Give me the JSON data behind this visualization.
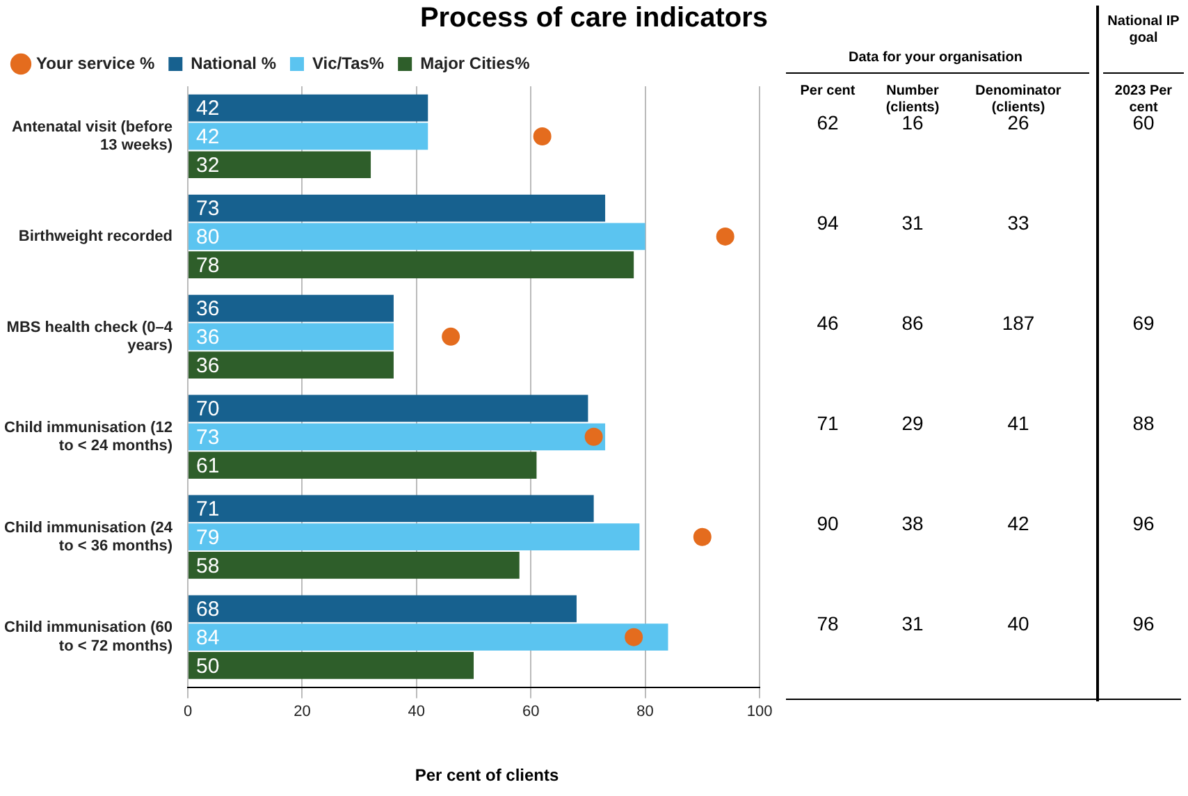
{
  "chart_data": {
    "type": "bar",
    "orientation": "horizontal",
    "title": "Process of care indicators",
    "xlabel": "Per cent of clients",
    "categories": [
      "Antenatal visit (before 13 weeks)",
      "Birthweight recorded",
      "MBS health check (0–4 years)",
      "Child immunisation (12 to < 24 months)",
      "Child immunisation (24 to < 36 months)",
      "Child immunisation (60 to < 72 months)"
    ],
    "series": [
      {
        "name": "National %",
        "color": "#17618f",
        "values": [
          42,
          73,
          36,
          70,
          71,
          68
        ]
      },
      {
        "name": "Vic/Tas%",
        "color": "#5bc4f0",
        "values": [
          42,
          80,
          36,
          73,
          79,
          84
        ]
      },
      {
        "name": "Major Cities%",
        "color": "#2e5e2a",
        "values": [
          32,
          78,
          36,
          61,
          58,
          50
        ]
      },
      {
        "name": "Your service %",
        "type": "scatter",
        "color": "#e46c1e",
        "x": [
          "Antenatal visit (before 13 weeks)",
          "Birthweight recorded",
          "MBS health check (0–4 years)",
          "Child immunisation (12 to < 24 months)",
          "Child immunisation (24 to < 36 months)",
          "Child immunisation (60 to < 72 months)"
        ],
        "values": [
          62,
          94,
          46,
          71,
          90,
          78
        ],
        "value_labels": [
          "62",
          "94",
          "46",
          "71",
          "90",
          "78"
        ]
      }
    ],
    "annotations": [
      "Data for your organisation",
      "National IP goal",
      "Per cent",
      "Number (clients)",
      "Denominator (clients)",
      "2023 Per cent",
      "16",
      "26",
      "60",
      "31",
      "33",
      "86",
      "187",
      "69",
      "29",
      "41",
      "88",
      "38",
      "42",
      "96",
      "31",
      "40",
      "96"
    ],
    "xlim": [
      0,
      100
    ],
    "xticks": [
      0,
      20,
      40,
      60,
      80,
      100
    ],
    "grid": "x",
    "legend": "top left",
    "marker": "circle",
    "data_labels": true
  }
}
